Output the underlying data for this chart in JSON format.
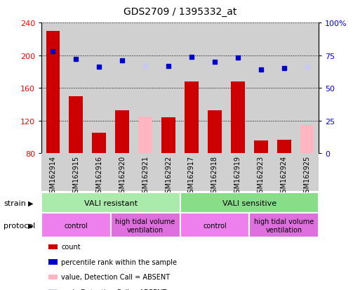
{
  "title": "GDS2709 / 1395332_at",
  "samples": [
    "GSM162914",
    "GSM162915",
    "GSM162916",
    "GSM162920",
    "GSM162921",
    "GSM162922",
    "GSM162917",
    "GSM162918",
    "GSM162919",
    "GSM162923",
    "GSM162924",
    "GSM162925"
  ],
  "bar_values": [
    230,
    150,
    105,
    133,
    125,
    124,
    168,
    133,
    168,
    96,
    97,
    115
  ],
  "bar_absent": [
    false,
    false,
    false,
    false,
    true,
    false,
    false,
    false,
    false,
    false,
    false,
    true
  ],
  "rank_values": [
    78,
    72,
    66,
    71,
    67,
    67,
    74,
    70,
    73,
    64,
    65,
    66
  ],
  "rank_absent": [
    false,
    false,
    false,
    false,
    true,
    false,
    false,
    false,
    false,
    false,
    false,
    true
  ],
  "ylim_left": [
    80,
    240
  ],
  "ylim_right": [
    0,
    100
  ],
  "yticks_left": [
    80,
    120,
    160,
    200,
    240
  ],
  "yticks_right": [
    0,
    25,
    50,
    75,
    100
  ],
  "bar_color": "#cc0000",
  "bar_absent_color": "#ffb6c1",
  "rank_color": "#0000cc",
  "rank_absent_color": "#c8c8f0",
  "bg_sample": "#d0d0d0",
  "strain_resistant_color": "#aaeaaa",
  "strain_sensitive_color": "#88dd88",
  "protocol_control_color": "#ee80ee",
  "protocol_htv_color": "#dd70dd",
  "strain_label": "strain",
  "protocol_label": "protocol",
  "strain_groups": [
    {
      "label": "VALI resistant",
      "start": 0,
      "end": 6
    },
    {
      "label": "VALI sensitive",
      "start": 6,
      "end": 12
    }
  ],
  "protocol_groups": [
    {
      "label": "control",
      "start": 0,
      "end": 3
    },
    {
      "label": "high tidal volume\nventilation",
      "start": 3,
      "end": 6
    },
    {
      "label": "control",
      "start": 6,
      "end": 9
    },
    {
      "label": "high tidal volume\nventilation",
      "start": 9,
      "end": 12
    }
  ],
  "legend_items": [
    {
      "color": "#cc0000",
      "label": "count"
    },
    {
      "color": "#0000cc",
      "label": "percentile rank within the sample"
    },
    {
      "color": "#ffb6c1",
      "label": "value, Detection Call = ABSENT"
    },
    {
      "color": "#c8c8f0",
      "label": "rank, Detection Call = ABSENT"
    }
  ]
}
